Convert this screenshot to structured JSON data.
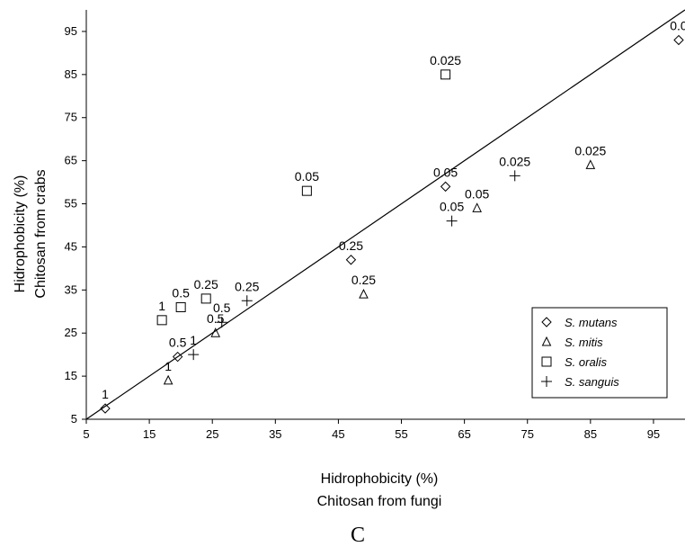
{
  "chart_data": {
    "type": "scatter",
    "panel_label": "C",
    "xlabel": [
      "Hidrophobicity (%)",
      "Chitosan from fungi"
    ],
    "ylabel": [
      "Hidrophobicity (%)",
      "Chitosan from crabs"
    ],
    "xlim": [
      5,
      100
    ],
    "ylim": [
      5,
      100
    ],
    "xticks": [
      5,
      15,
      25,
      35,
      45,
      55,
      65,
      75,
      85,
      95
    ],
    "yticks": [
      5,
      15,
      25,
      35,
      45,
      55,
      65,
      75,
      85,
      95
    ],
    "grid": false,
    "legend_position": "bottom-right",
    "reference_line": {
      "type": "identity",
      "from": [
        5,
        5
      ],
      "to": [
        100,
        100
      ]
    },
    "series": [
      {
        "name": "S. mutans",
        "marker": "diamond",
        "points": [
          {
            "x": 8,
            "y": 7.5,
            "label": "1"
          },
          {
            "x": 19.5,
            "y": 19.5,
            "label": "0.5"
          },
          {
            "x": 47,
            "y": 42,
            "label": "0.25"
          },
          {
            "x": 62,
            "y": 59,
            "label": "0.05"
          },
          {
            "x": 99,
            "y": 93,
            "label": "0.0"
          }
        ]
      },
      {
        "name": "S. mitis",
        "marker": "triangle",
        "points": [
          {
            "x": 18,
            "y": 14,
            "label": "1"
          },
          {
            "x": 25.5,
            "y": 25,
            "label": "0.5"
          },
          {
            "x": 49,
            "y": 34,
            "label": "0.25"
          },
          {
            "x": 67,
            "y": 54,
            "label": "0.05"
          },
          {
            "x": 85,
            "y": 64,
            "label": "0.025"
          }
        ]
      },
      {
        "name": "S. oralis",
        "marker": "square",
        "points": [
          {
            "x": 17,
            "y": 28,
            "label": "1"
          },
          {
            "x": 20,
            "y": 31,
            "label": "0.5"
          },
          {
            "x": 24,
            "y": 33,
            "label": "0.25"
          },
          {
            "x": 40,
            "y": 58,
            "label": "0.05"
          },
          {
            "x": 62,
            "y": 85,
            "label": "0.025"
          }
        ]
      },
      {
        "name": "S. sanguis",
        "marker": "plus",
        "points": [
          {
            "x": 22,
            "y": 20,
            "label": "1"
          },
          {
            "x": 26.5,
            "y": 27.5,
            "label": "0.5"
          },
          {
            "x": 30.5,
            "y": 32.5,
            "label": "0.25"
          },
          {
            "x": 63,
            "y": 51,
            "label": "0.05"
          },
          {
            "x": 73,
            "y": 61.5,
            "label": "0.025"
          }
        ]
      }
    ]
  }
}
